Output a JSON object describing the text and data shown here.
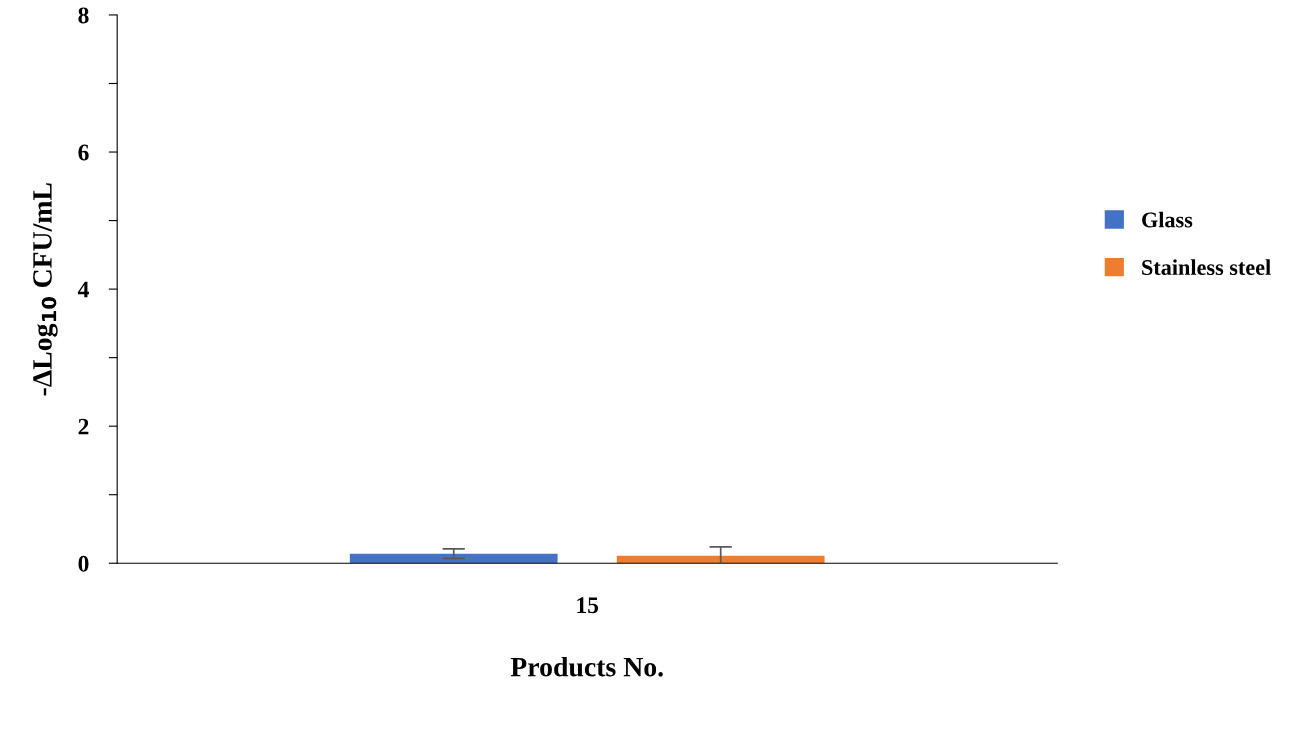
{
  "chart_data": {
    "type": "bar",
    "xlabel": "Products No.",
    "ylabel": "-ΔLog$_{10}$ CFU/mL",
    "categories": [
      "15"
    ],
    "series": [
      {
        "name": "Glass",
        "color": "#4472c4",
        "values": [
          0.14
        ],
        "errors": [
          0.07
        ]
      },
      {
        "name": "Stainless steel",
        "color": "#ed7d31",
        "values": [
          0.11
        ],
        "errors": [
          0.13
        ]
      }
    ],
    "ylim": [
      0,
      8
    ],
    "yticks": [
      0,
      {
        "value": 1,
        "label": null
      },
      2,
      {
        "value": 3,
        "label": null
      },
      4,
      {
        "value": 5,
        "label": null
      },
      6,
      {
        "value": 7,
        "label": null
      },
      8
    ],
    "grid": false,
    "legend": "right"
  }
}
